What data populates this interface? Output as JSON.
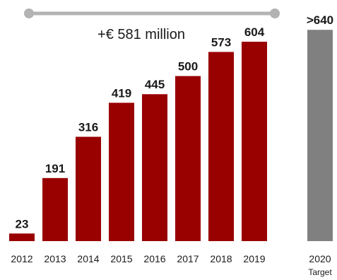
{
  "chart_data": {
    "type": "bar",
    "categories": [
      "2012",
      "2013",
      "2014",
      "2015",
      "2016",
      "2017",
      "2018",
      "2019"
    ],
    "values": [
      23,
      191,
      316,
      419,
      445,
      500,
      573,
      604
    ],
    "value_labels": [
      "23",
      "191",
      "316",
      "419",
      "445",
      "500",
      "573",
      "604"
    ],
    "target": {
      "category": "2020",
      "category_sub": "Target",
      "value": 640,
      "label": ">640"
    },
    "annotation": "+€ 581 million",
    "ylim": [
      0,
      660
    ],
    "colors": {
      "bar": "#990000",
      "target_bar": "#808080",
      "bracket": "#b3b3b3"
    }
  }
}
